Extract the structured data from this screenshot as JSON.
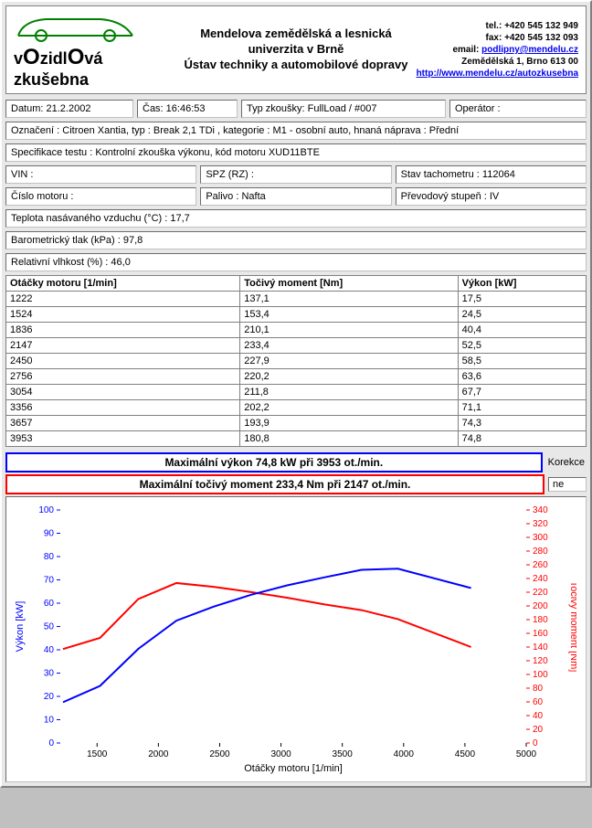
{
  "header": {
    "university": "Mendelova zemědělská a lesnická univerzita v Brně",
    "department": "Ústav techniky a automobilové dopravy",
    "logo_text": "vOzidlOvá zkušebna",
    "contact": {
      "tel": "tel.: +420 545 132 949",
      "fax": "fax: +420 545 132 093",
      "email_label": "email: ",
      "email": "podlipny@mendelu.cz",
      "address": "Zemědělská 1, Brno 613 00",
      "url": "http://www.mendelu.cz/autozkusebna"
    }
  },
  "info": {
    "datum": "Datum: 21.2.2002",
    "cas": "Čas: 16:46:53",
    "typ_zkousky": "Typ zkoušky: FullLoad / #007",
    "operator": "Operátor :",
    "oznaceni": "Označení : Citroen Xantia, typ : Break 2,1 TDi , kategorie : M1 - osobní auto, hnaná náprava : Přední",
    "specifikace": "Specifikace testu : Kontrolní zkouška výkonu, kód motoru XUD11BTE",
    "vin": "VIN :",
    "spz": "SPZ (RZ) :",
    "stav_tach": "Stav tachometru : 112064",
    "cislo_motoru": "Číslo motoru :",
    "palivo": "Palivo : Nafta",
    "prevod": "Převodový stupeň : IV",
    "teplota": "Teplota nasávaného vzduchu (°C) : 17,7",
    "tlak": "Barometrický tlak (kPa) : 97,8",
    "vlhkost": "Relativní vlhkost (%) : 46,0"
  },
  "table": {
    "headers": [
      "Otáčky motoru [1/min]",
      "Točivý moment [Nm]",
      "Výkon [kW]"
    ],
    "rows": [
      [
        "1222",
        "137,1",
        "17,5"
      ],
      [
        "1524",
        "153,4",
        "24,5"
      ],
      [
        "1836",
        "210,1",
        "40,4"
      ],
      [
        "2147",
        "233,4",
        "52,5"
      ],
      [
        "2450",
        "227,9",
        "58,5"
      ],
      [
        "2756",
        "220,2",
        "63,6"
      ],
      [
        "3054",
        "211,8",
        "67,7"
      ],
      [
        "3356",
        "202,2",
        "71,1"
      ],
      [
        "3657",
        "193,9",
        "74,3"
      ],
      [
        "3953",
        "180,8",
        "74,8"
      ]
    ]
  },
  "max": {
    "power": "Maximální výkon 74,8 kW při 3953 ot./min.",
    "torque": "Maximální točivý moment 233,4 Nm při 2147 ot./min.",
    "korekce_label": "Korekce",
    "korekce_val": "ne"
  },
  "chart": {
    "xlabel": "Otáčky motoru [1/min]",
    "ylabel_left": "Výkon [kW]",
    "ylabel_right": "Točivý moment [Nm]",
    "xlim": [
      1200,
      5000
    ],
    "xtick_start": 1500,
    "xtick_step": 500,
    "ylim_left": [
      0,
      100
    ],
    "ytick_left_step": 10,
    "ylim_right": [
      0,
      340
    ],
    "ytick_right_step": 20,
    "power_color": "#0000ff",
    "torque_color": "#ff0000",
    "tick_color": "#0000ff",
    "tick_color_right": "#ff0000",
    "line_width": 2,
    "data": [
      {
        "rpm": 1222,
        "nm": 137.1,
        "kw": 17.5
      },
      {
        "rpm": 1524,
        "nm": 153.4,
        "kw": 24.5
      },
      {
        "rpm": 1836,
        "nm": 210.1,
        "kw": 40.4
      },
      {
        "rpm": 2147,
        "nm": 233.4,
        "kw": 52.5
      },
      {
        "rpm": 2450,
        "nm": 227.9,
        "kw": 58.5
      },
      {
        "rpm": 2756,
        "nm": 220.2,
        "kw": 63.6
      },
      {
        "rpm": 3054,
        "nm": 211.8,
        "kw": 67.7
      },
      {
        "rpm": 3356,
        "nm": 202.2,
        "kw": 71.1
      },
      {
        "rpm": 3657,
        "nm": 193.9,
        "kw": 74.3
      },
      {
        "rpm": 3953,
        "nm": 180.8,
        "kw": 74.8
      },
      {
        "rpm": 4550,
        "nm": 140.0,
        "kw": 66.5
      }
    ]
  }
}
